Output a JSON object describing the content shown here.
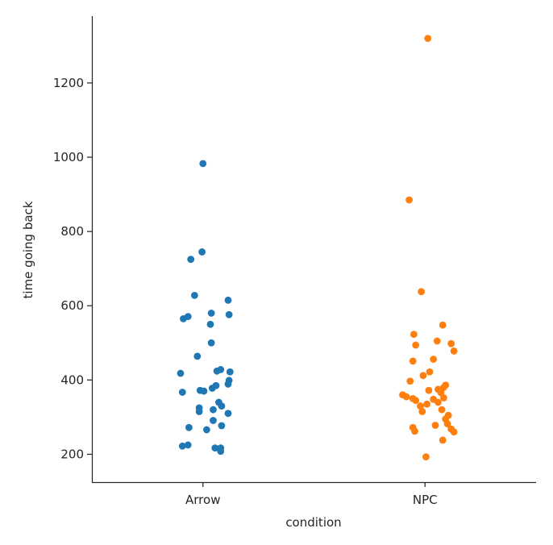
{
  "chart_data": {
    "type": "scatter",
    "subtype": "strip",
    "title": "",
    "xlabel": "condition",
    "ylabel": "time going back",
    "categories": [
      "Arrow",
      "NPC"
    ],
    "ylim": [
      125,
      1380
    ],
    "yticks": [
      200,
      400,
      600,
      800,
      1000,
      1200
    ],
    "grid": false,
    "legend": "none",
    "series": [
      {
        "category": "Arrow",
        "color": "#1f77b4",
        "points": [
          {
            "x": "Arrow",
            "y": 983,
            "jitter": 0.0
          },
          {
            "x": "Arrow",
            "y": 745,
            "jitter": -0.01
          },
          {
            "x": "Arrow",
            "y": 725,
            "jitter": -0.13
          },
          {
            "x": "Arrow",
            "y": 628,
            "jitter": -0.09
          },
          {
            "x": "Arrow",
            "y": 615,
            "jitter": 0.27
          },
          {
            "x": "Arrow",
            "y": 580,
            "jitter": 0.09
          },
          {
            "x": "Arrow",
            "y": 576,
            "jitter": 0.28
          },
          {
            "x": "Arrow",
            "y": 571,
            "jitter": -0.16
          },
          {
            "x": "Arrow",
            "y": 565,
            "jitter": -0.21
          },
          {
            "x": "Arrow",
            "y": 550,
            "jitter": 0.08
          },
          {
            "x": "Arrow",
            "y": 500,
            "jitter": 0.09
          },
          {
            "x": "Arrow",
            "y": 464,
            "jitter": -0.06
          },
          {
            "x": "Arrow",
            "y": 428,
            "jitter": 0.19
          },
          {
            "x": "Arrow",
            "y": 424,
            "jitter": 0.15
          },
          {
            "x": "Arrow",
            "y": 422,
            "jitter": 0.29
          },
          {
            "x": "Arrow",
            "y": 418,
            "jitter": -0.24
          },
          {
            "x": "Arrow",
            "y": 399,
            "jitter": 0.28
          },
          {
            "x": "Arrow",
            "y": 389,
            "jitter": 0.27
          },
          {
            "x": "Arrow",
            "y": 385,
            "jitter": 0.14
          },
          {
            "x": "Arrow",
            "y": 378,
            "jitter": 0.1
          },
          {
            "x": "Arrow",
            "y": 372,
            "jitter": -0.03
          },
          {
            "x": "Arrow",
            "y": 370,
            "jitter": 0.01
          },
          {
            "x": "Arrow",
            "y": 367,
            "jitter": -0.22
          },
          {
            "x": "Arrow",
            "y": 340,
            "jitter": 0.17
          },
          {
            "x": "Arrow",
            "y": 330,
            "jitter": 0.2
          },
          {
            "x": "Arrow",
            "y": 325,
            "jitter": -0.04
          },
          {
            "x": "Arrow",
            "y": 320,
            "jitter": 0.11
          },
          {
            "x": "Arrow",
            "y": 315,
            "jitter": -0.04
          },
          {
            "x": "Arrow",
            "y": 310,
            "jitter": 0.27
          },
          {
            "x": "Arrow",
            "y": 291,
            "jitter": 0.11
          },
          {
            "x": "Arrow",
            "y": 277,
            "jitter": 0.2
          },
          {
            "x": "Arrow",
            "y": 272,
            "jitter": -0.15
          },
          {
            "x": "Arrow",
            "y": 266,
            "jitter": 0.04
          },
          {
            "x": "Arrow",
            "y": 225,
            "jitter": -0.16
          },
          {
            "x": "Arrow",
            "y": 222,
            "jitter": -0.22
          },
          {
            "x": "Arrow",
            "y": 217,
            "jitter": 0.13
          },
          {
            "x": "Arrow",
            "y": 217,
            "jitter": 0.19
          },
          {
            "x": "Arrow",
            "y": 208,
            "jitter": 0.19
          }
        ]
      },
      {
        "category": "NPC",
        "color": "#ff7f0e",
        "points": [
          {
            "x": "NPC",
            "y": 1320,
            "jitter": 0.03
          },
          {
            "x": "NPC",
            "y": 885,
            "jitter": -0.17
          },
          {
            "x": "NPC",
            "y": 638,
            "jitter": -0.04
          },
          {
            "x": "NPC",
            "y": 548,
            "jitter": 0.19
          },
          {
            "x": "NPC",
            "y": 523,
            "jitter": -0.12
          },
          {
            "x": "NPC",
            "y": 505,
            "jitter": 0.13
          },
          {
            "x": "NPC",
            "y": 498,
            "jitter": 0.28
          },
          {
            "x": "NPC",
            "y": 494,
            "jitter": -0.1
          },
          {
            "x": "NPC",
            "y": 478,
            "jitter": 0.31
          },
          {
            "x": "NPC",
            "y": 456,
            "jitter": 0.09
          },
          {
            "x": "NPC",
            "y": 451,
            "jitter": -0.13
          },
          {
            "x": "NPC",
            "y": 422,
            "jitter": 0.05
          },
          {
            "x": "NPC",
            "y": 412,
            "jitter": -0.02
          },
          {
            "x": "NPC",
            "y": 397,
            "jitter": -0.16
          },
          {
            "x": "NPC",
            "y": 386,
            "jitter": 0.22
          },
          {
            "x": "NPC",
            "y": 380,
            "jitter": 0.2
          },
          {
            "x": "NPC",
            "y": 375,
            "jitter": 0.14
          },
          {
            "x": "NPC",
            "y": 372,
            "jitter": 0.04
          },
          {
            "x": "NPC",
            "y": 366,
            "jitter": 0.17
          },
          {
            "x": "NPC",
            "y": 360,
            "jitter": -0.24
          },
          {
            "x": "NPC",
            "y": 355,
            "jitter": -0.2
          },
          {
            "x": "NPC",
            "y": 352,
            "jitter": 0.2
          },
          {
            "x": "NPC",
            "y": 350,
            "jitter": -0.13
          },
          {
            "x": "NPC",
            "y": 348,
            "jitter": 0.09
          },
          {
            "x": "NPC",
            "y": 345,
            "jitter": -0.1
          },
          {
            "x": "NPC",
            "y": 340,
            "jitter": 0.14
          },
          {
            "x": "NPC",
            "y": 335,
            "jitter": 0.02
          },
          {
            "x": "NPC",
            "y": 330,
            "jitter": -0.05
          },
          {
            "x": "NPC",
            "y": 320,
            "jitter": 0.18
          },
          {
            "x": "NPC",
            "y": 315,
            "jitter": -0.03
          },
          {
            "x": "NPC",
            "y": 305,
            "jitter": 0.25
          },
          {
            "x": "NPC",
            "y": 295,
            "jitter": 0.22
          },
          {
            "x": "NPC",
            "y": 282,
            "jitter": 0.24
          },
          {
            "x": "NPC",
            "y": 278,
            "jitter": 0.11
          },
          {
            "x": "NPC",
            "y": 272,
            "jitter": -0.13
          },
          {
            "x": "NPC",
            "y": 268,
            "jitter": 0.28
          },
          {
            "x": "NPC",
            "y": 262,
            "jitter": -0.11
          },
          {
            "x": "NPC",
            "y": 260,
            "jitter": 0.31
          },
          {
            "x": "NPC",
            "y": 238,
            "jitter": 0.19
          },
          {
            "x": "NPC",
            "y": 193,
            "jitter": 0.01
          }
        ]
      }
    ]
  }
}
